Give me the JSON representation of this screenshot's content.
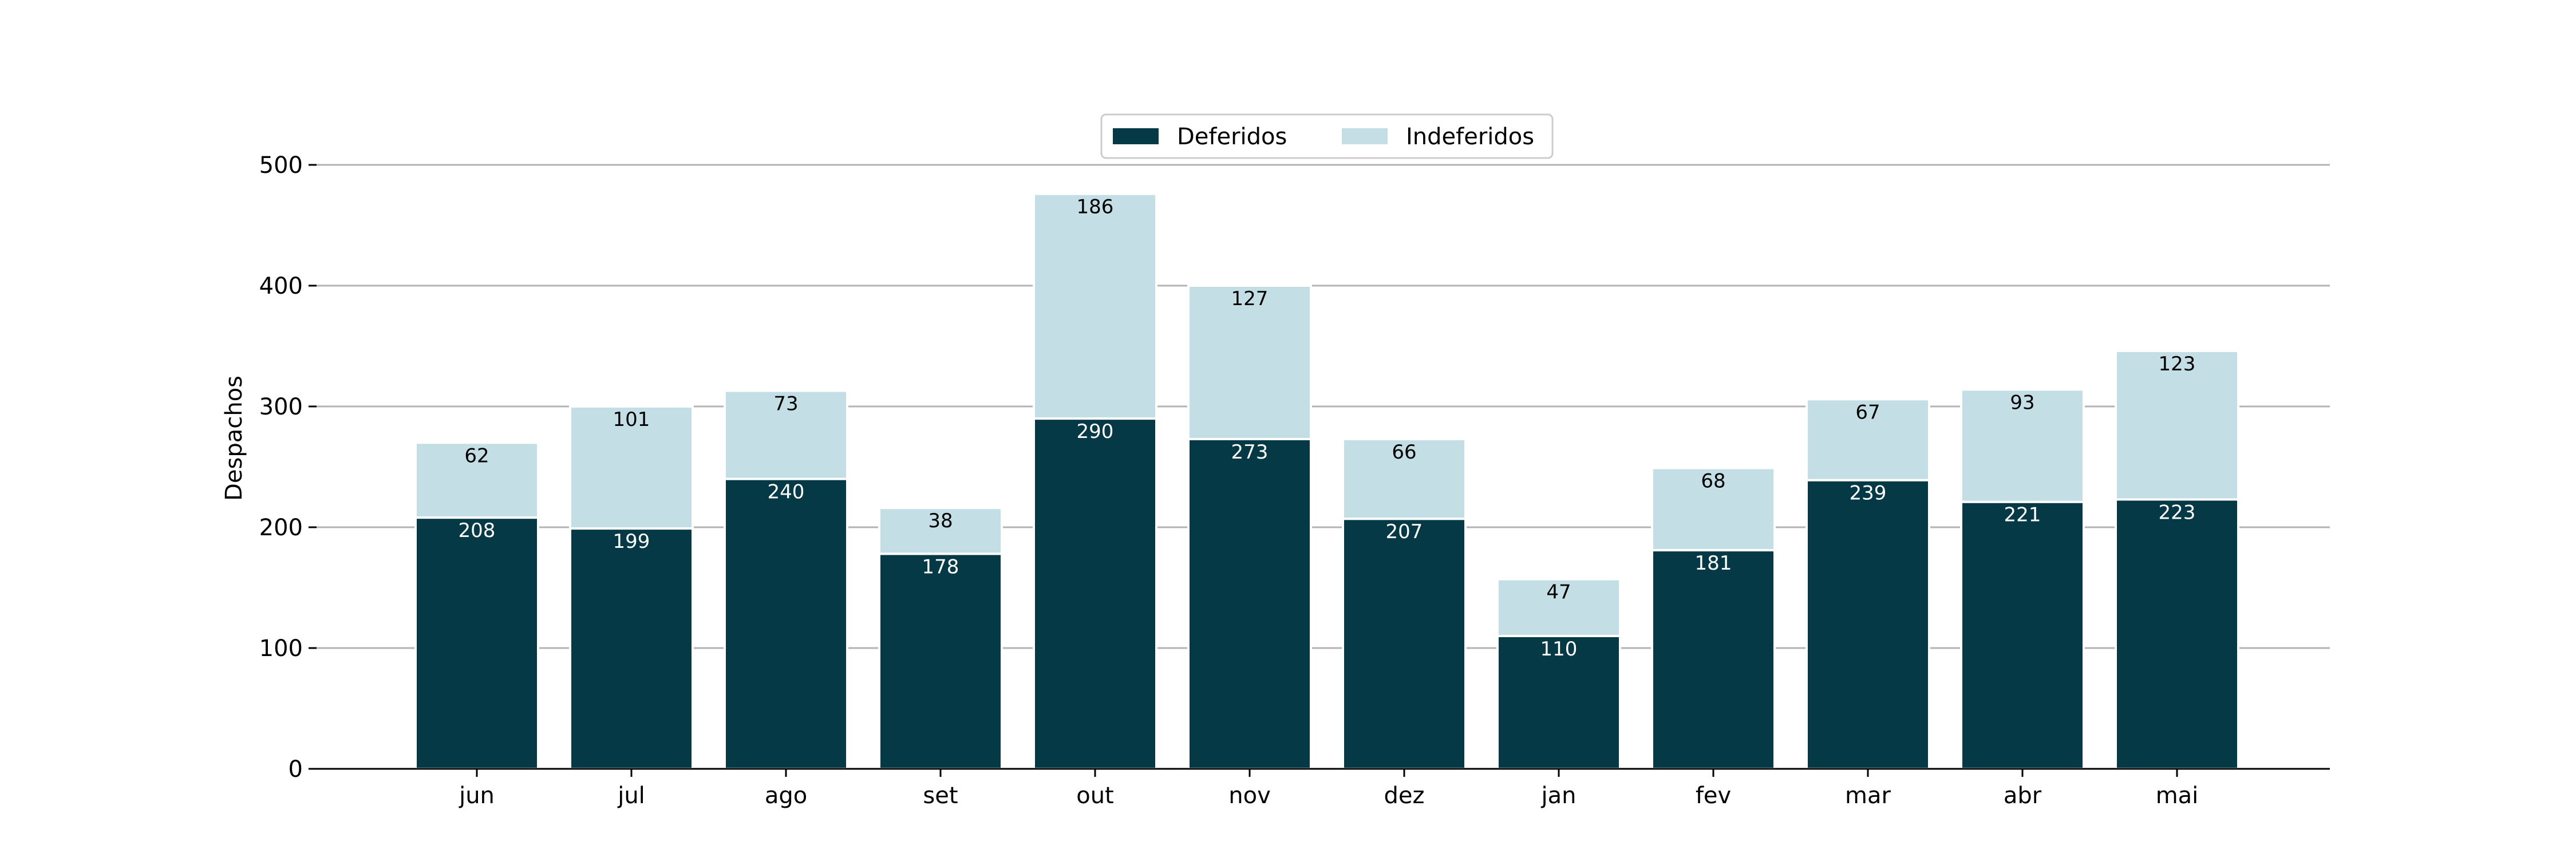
{
  "chart_data": {
    "type": "bar",
    "stacked": true,
    "categories": [
      "jun",
      "jul",
      "ago",
      "set",
      "out",
      "nov",
      "dez",
      "jan",
      "fev",
      "mar",
      "abr",
      "mai"
    ],
    "series": [
      {
        "name": "Deferidos",
        "color": "#043945",
        "label_color": "#ffffff",
        "values": [
          208,
          199,
          240,
          178,
          290,
          273,
          207,
          110,
          181,
          239,
          221,
          223
        ]
      },
      {
        "name": "Indeferidos",
        "color": "#c3dfe5",
        "label_color": "#000000",
        "values": [
          62,
          101,
          73,
          38,
          186,
          127,
          66,
          47,
          68,
          67,
          93,
          123
        ]
      }
    ],
    "ylabel": "Despachos",
    "xlabel": "",
    "ylim": [
      0,
      500
    ],
    "yticks": [
      0,
      100,
      200,
      300,
      400,
      500
    ],
    "grid": "horizontal",
    "legend": "top-center"
  }
}
